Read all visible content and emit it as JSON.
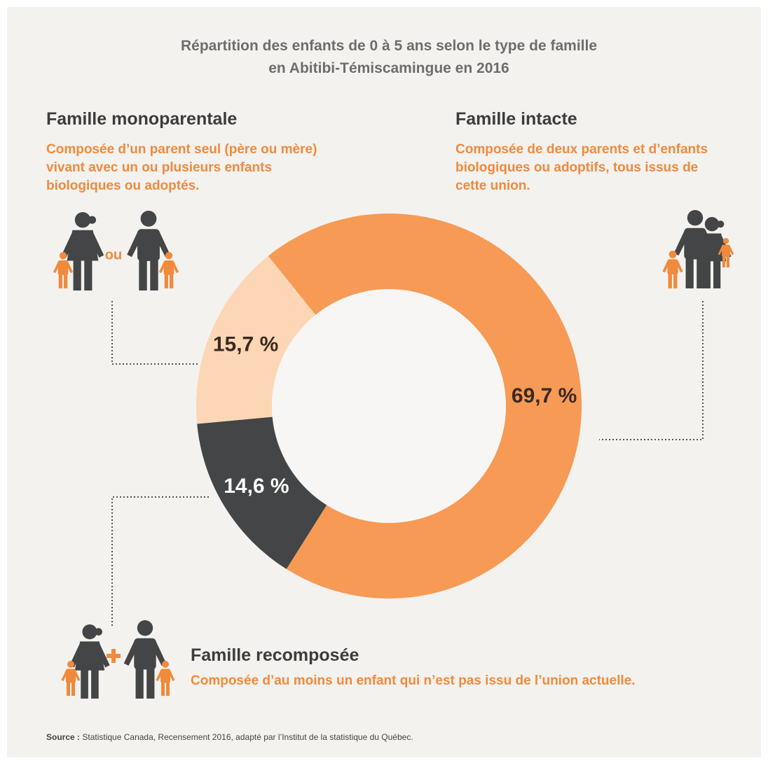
{
  "chart_data": {
    "type": "donut",
    "title": [
      "Répartition des enfants de 0 à 5 ans selon le type de famille",
      "en Abitibi-Témiscamingue en 2016"
    ],
    "categories": [
      "Famille intacte",
      "Famille recomposée",
      "Famille monoparentale"
    ],
    "descriptions": [
      "Composée de deux parents et d’enfants biologiques ou adoptifs, tous issus de cette union.",
      "Composée d’au moins un enfant qui n’est pas issu de l’union actuelle.",
      "Composée d’un parent seul (père ou mère) vivant avec un ou plusieurs enfants biologiques ou adoptés."
    ],
    "values": [
      69.7,
      14.6,
      15.7
    ],
    "value_labels": [
      "69,7 %",
      "14,6 %",
      "15,7 %"
    ],
    "colors": [
      "#f79a55",
      "#434546",
      "#fdd6b5"
    ],
    "label_colors": [
      "#3b2a1f",
      "#ffffff",
      "#3b2a1f"
    ],
    "separator_or": "ou",
    "source_label": "Source :",
    "source": "Statistique Canada, Recensement 2016, adapté par l’Institut de la statistique du Québec."
  }
}
